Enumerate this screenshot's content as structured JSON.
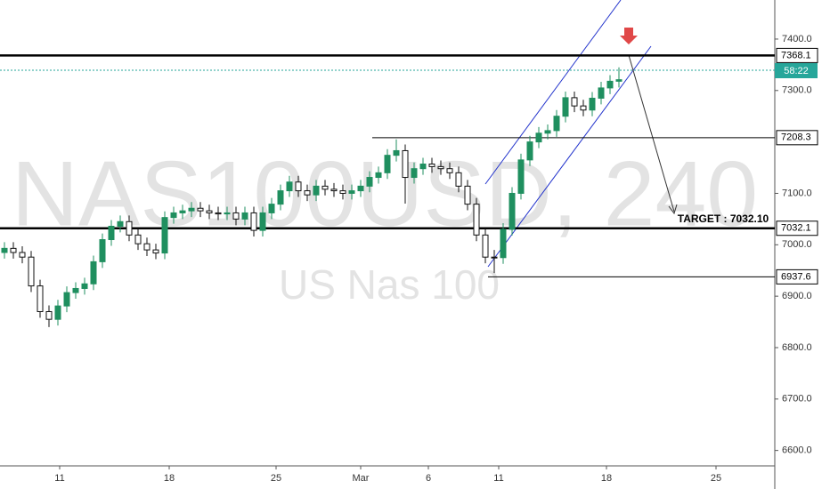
{
  "chart_data": {
    "type": "candlestick",
    "watermark": "NAS100USD, 240",
    "subtitle": "US Nas 100",
    "xlim": [
      0,
      87
    ],
    "ylim": [
      6570,
      7476
    ],
    "xticks": [
      {
        "value": 6.7,
        "label": "11"
      },
      {
        "value": 19,
        "label": "18"
      },
      {
        "value": 31,
        "label": "25"
      },
      {
        "value": 40.5,
        "label": "Mar"
      },
      {
        "value": 48.1,
        "label": "6"
      },
      {
        "value": 56,
        "label": "11"
      },
      {
        "value": 68.1,
        "label": "18"
      },
      {
        "value": 80.4,
        "label": "25"
      }
    ],
    "yticks": [
      {
        "value": 7400,
        "label": "7400.0"
      },
      {
        "value": 7300,
        "label": "7300.0"
      },
      {
        "value": 7100,
        "label": "7100.0"
      },
      {
        "value": 7000,
        "label": "7000.0"
      },
      {
        "value": 6900,
        "label": "6900.0"
      },
      {
        "value": 6800,
        "label": "6800.0"
      },
      {
        "value": 6700,
        "label": "6700.0"
      },
      {
        "value": 6600,
        "label": "6600.0"
      }
    ],
    "up_color": "#1f8f5f",
    "down_color": "#111111",
    "open": [
      6985,
      6993,
      6985,
      6976,
      6920,
      6870,
      6855,
      6881,
      6907,
      6915,
      6924,
      6967,
      7010,
      7036,
      7045,
      7019,
      7002,
      6990,
      6984,
      7053,
      7062,
      7066,
      7071,
      7066,
      7062,
      7060,
      7062,
      7050,
      7062,
      7028,
      7062,
      7079,
      7105,
      7122,
      7105,
      7097,
      7114,
      7108,
      7105,
      7100,
      7105,
      7114,
      7131,
      7140,
      7174,
      7183,
      7131,
      7148,
      7157,
      7152,
      7148,
      7140,
      7114,
      7079,
      7019,
      6976,
      6975,
      7030,
      7100,
      7165,
      7200,
      7217,
      7222,
      7250,
      7286,
      7270,
      7262,
      7285,
      7305,
      7318
    ],
    "high": [
      7005,
      7005,
      6997,
      6988,
      6932,
      6882,
      6893,
      6919,
      6927,
      6936,
      6979,
      7022,
      7048,
      7057,
      7057,
      7031,
      7014,
      7002,
      7065,
      7074,
      7078,
      7083,
      7083,
      7078,
      7074,
      7074,
      7074,
      7074,
      7074,
      7074,
      7091,
      7117,
      7134,
      7134,
      7117,
      7126,
      7126,
      7120,
      7117,
      7117,
      7126,
      7143,
      7152,
      7186,
      7205,
      7195,
      7160,
      7169,
      7169,
      7164,
      7160,
      7152,
      7126,
      7091,
      7031,
      6990,
      7042,
      7112,
      7177,
      7212,
      7229,
      7234,
      7262,
      7298,
      7298,
      7282,
      7297,
      7317,
      7330,
      7345
    ],
    "low": [
      6973,
      6973,
      6964,
      6908,
      6858,
      6840,
      6843,
      6869,
      6895,
      6903,
      6912,
      6955,
      6998,
      7024,
      7007,
      6990,
      6978,
      6972,
      6972,
      7041,
      7050,
      7054,
      7054,
      7050,
      7048,
      7048,
      7038,
      7038,
      7016,
      7016,
      7050,
      7067,
      7093,
      7093,
      7085,
      7085,
      7096,
      7093,
      7088,
      7088,
      7093,
      7102,
      7119,
      7128,
      7162,
      7080,
      7119,
      7136,
      7140,
      7136,
      7128,
      7102,
      7067,
      7007,
      6964,
      6945,
      6963,
      7018,
      7088,
      7153,
      7188,
      7205,
      7210,
      7238,
      7258,
      7250,
      7250,
      7273,
      7293,
      7306
    ],
    "close": [
      6993,
      6985,
      6976,
      6920,
      6870,
      6855,
      6881,
      6907,
      6915,
      6924,
      6967,
      7010,
      7036,
      7045,
      7019,
      7002,
      6990,
      6984,
      7053,
      7062,
      7066,
      7071,
      7066,
      7062,
      7060,
      7062,
      7050,
      7062,
      7028,
      7062,
      7079,
      7105,
      7122,
      7105,
      7097,
      7114,
      7108,
      7105,
      7100,
      7105,
      7114,
      7131,
      7140,
      7174,
      7183,
      7131,
      7148,
      7157,
      7152,
      7148,
      7140,
      7114,
      7079,
      7019,
      6976,
      6975,
      7030,
      7100,
      7165,
      7200,
      7217,
      7222,
      7250,
      7286,
      7270,
      7262,
      7285,
      7305,
      7318,
      7321
    ],
    "levels": [
      {
        "value": 7368.1,
        "label": "7368.1",
        "bold": true
      },
      {
        "value": 7208.3,
        "label": "7208.3",
        "bold": false
      },
      {
        "value": 7032.1,
        "label": "7032.1",
        "bold": true
      },
      {
        "value": 6937.6,
        "label": "6937.6",
        "bold": false
      }
    ],
    "target_label": "TARGET : 7032.10",
    "timer_label": "58:22"
  }
}
